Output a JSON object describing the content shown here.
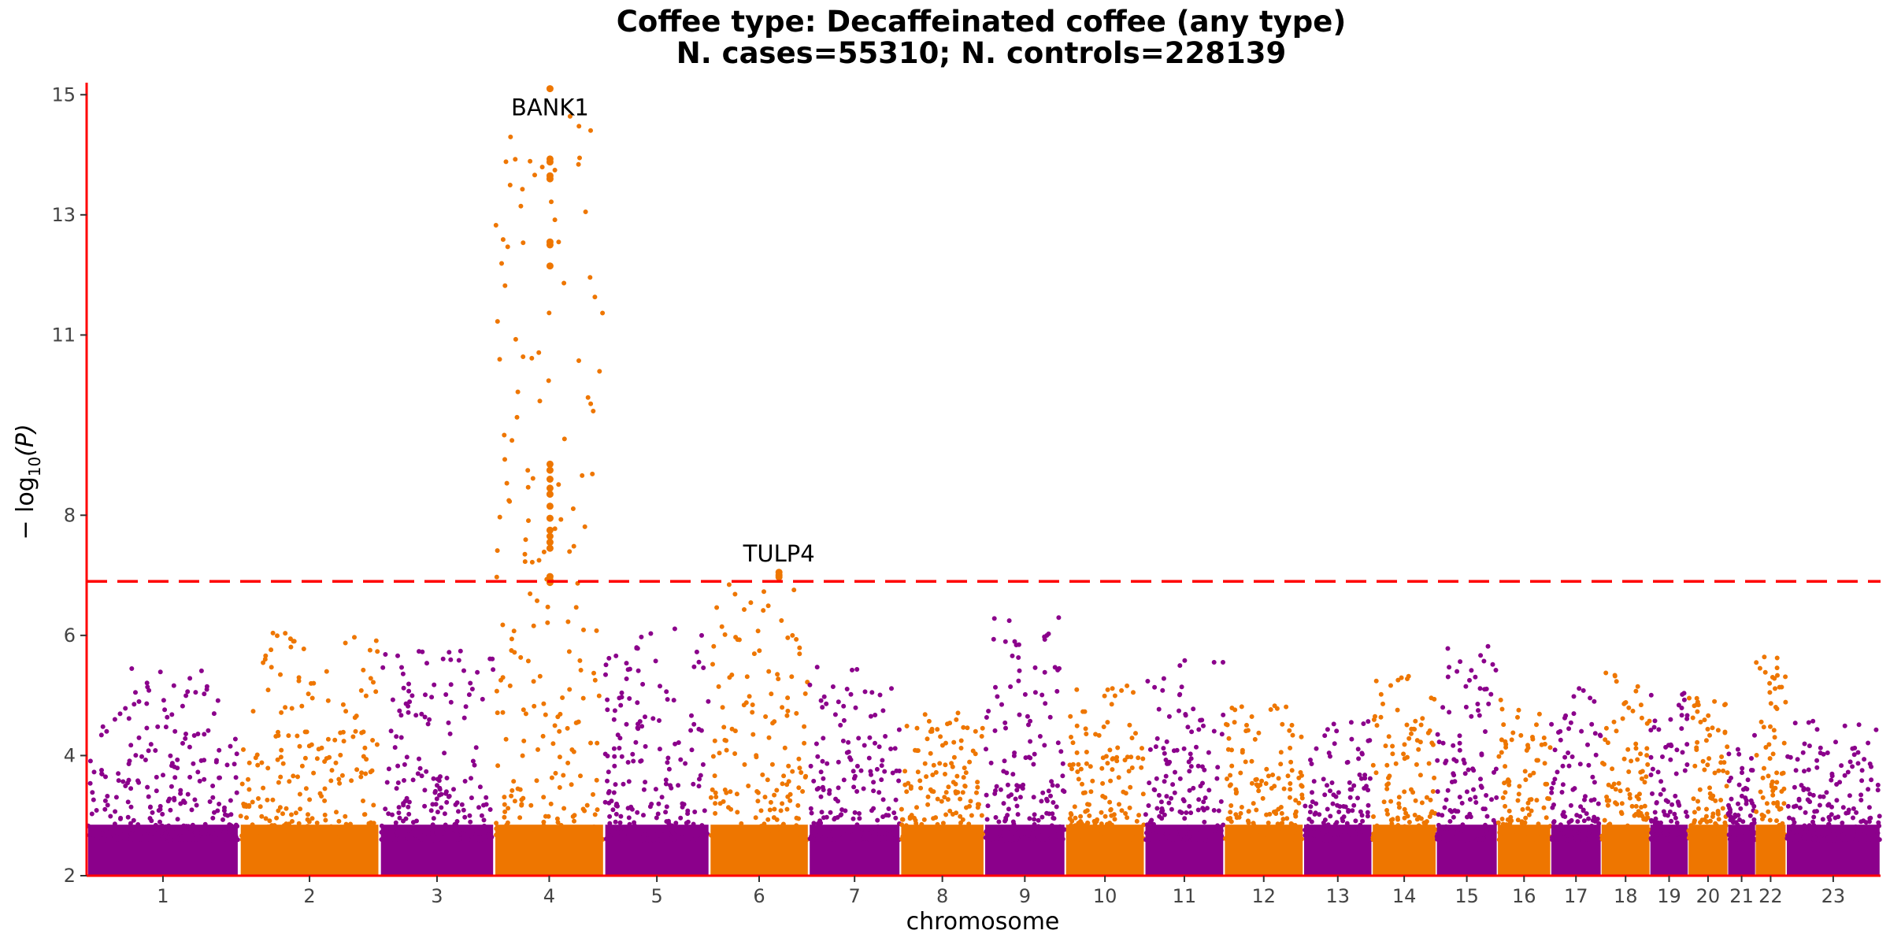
{
  "chart_data": {
    "type": "scatter",
    "subtype": "manhattan",
    "title": "Coffee type: Decaffeinated coffee (any type)",
    "subtitle": "N. cases=55310; N. controls=228139",
    "xlabel": "chromosome",
    "ylabel": "− log10(P)",
    "ylabel_parts": {
      "main": "− log",
      "sub": "10",
      "paren": "(P)"
    },
    "ylim": [
      2,
      15.2
    ],
    "yticks": [
      "2",
      "4",
      "6",
      "8",
      "11",
      "13",
      "15"
    ],
    "ytick_values": [
      2,
      4,
      6,
      8,
      11,
      13,
      15
    ],
    "significance_threshold": 6.9,
    "grid": false,
    "colors": {
      "odd": "#8B008B",
      "even": "#EE7600",
      "threshold": "#FF0000",
      "axis": "#FF0000"
    },
    "chromosomes": [
      {
        "label": "1",
        "span": [
          0,
          1.0
        ],
        "peak": 5.5
      },
      {
        "label": "2",
        "span": [
          1.0,
          1.92
        ],
        "peak": 6.05
      },
      {
        "label": "3",
        "span": [
          1.92,
          2.67
        ],
        "peak": 5.75
      },
      {
        "label": "4",
        "span": [
          2.67,
          3.39
        ],
        "peak": 15.1
      },
      {
        "label": "5",
        "span": [
          3.39,
          4.08
        ],
        "peak": 6.15
      },
      {
        "label": "6",
        "span": [
          4.08,
          4.73
        ],
        "peak": 7.0
      },
      {
        "label": "7",
        "span": [
          4.73,
          5.33
        ],
        "peak": 5.55
      },
      {
        "label": "8",
        "span": [
          5.33,
          5.88
        ],
        "peak": 4.8
      },
      {
        "label": "9",
        "span": [
          5.88,
          6.41
        ],
        "peak": 6.3
      },
      {
        "label": "10",
        "span": [
          6.41,
          6.93
        ],
        "peak": 5.2
      },
      {
        "label": "11",
        "span": [
          6.93,
          7.45
        ],
        "peak": 5.6
      },
      {
        "label": "12",
        "span": [
          7.45,
          7.97
        ],
        "peak": 5.1
      },
      {
        "label": "13",
        "span": [
          7.97,
          8.42
        ],
        "peak": 4.6
      },
      {
        "label": "14",
        "span": [
          8.42,
          8.84
        ],
        "peak": 5.35
      },
      {
        "label": "15",
        "span": [
          8.84,
          9.24
        ],
        "peak": 5.95
      },
      {
        "label": "16",
        "span": [
          9.24,
          9.59
        ],
        "peak": 5.15
      },
      {
        "label": "17",
        "span": [
          9.59,
          9.92
        ],
        "peak": 5.15
      },
      {
        "label": "18",
        "span": [
          9.92,
          10.24
        ],
        "peak": 5.4
      },
      {
        "label": "19",
        "span": [
          10.24,
          10.49
        ],
        "peak": 5.1
      },
      {
        "label": "20",
        "span": [
          10.49,
          10.75
        ],
        "peak": 5.0
      },
      {
        "label": "21",
        "span": [
          10.75,
          10.93
        ],
        "peak": 4.4
      },
      {
        "label": "22",
        "span": [
          10.93,
          11.13
        ],
        "peak": 5.65
      },
      {
        "label": "23",
        "span": [
          11.13,
          11.75
        ],
        "peak": 4.6
      }
    ],
    "hits": [
      {
        "label": "BANK1",
        "chromosome": "4",
        "y": 15.1,
        "points": [
          15.1,
          13.93,
          13.88,
          13.65,
          13.6,
          12.55,
          12.5,
          12.15,
          8.85,
          8.75,
          8.6,
          8.45,
          8.35,
          8.15,
          7.95,
          7.75,
          7.65,
          7.55,
          7.45,
          6.98,
          6.92,
          6.88
        ]
      },
      {
        "label": "TULP4",
        "chromosome": "6",
        "y": 7.02,
        "points": [
          7.05,
          7.0,
          6.97
        ]
      }
    ]
  }
}
